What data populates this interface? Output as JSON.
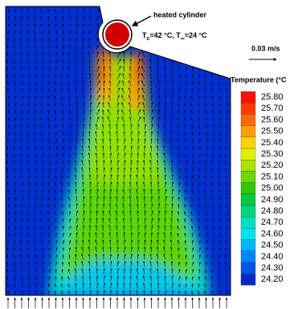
{
  "annotations": {
    "cylinder": "heated cylinder",
    "condition": [
      "T",
      "c",
      "=42 °C, T",
      "∞",
      "=24 °C"
    ],
    "scale": "0.03 m/s"
  },
  "colorbar": {
    "title": "Temperature (°C",
    "levels": [
      {
        "value": 25.8,
        "label": "25.80",
        "color": "#ff1000"
      },
      {
        "value": 25.7,
        "label": "25.70",
        "color": "#ff3c00"
      },
      {
        "value": 25.6,
        "label": "25.60",
        "color": "#ff6a00"
      },
      {
        "value": 25.5,
        "label": "25.50",
        "color": "#ffa000"
      },
      {
        "value": 25.4,
        "label": "25.40",
        "color": "#ffd400"
      },
      {
        "value": 25.3,
        "label": "25.30",
        "color": "#e0f000"
      },
      {
        "value": 25.2,
        "label": "25.20",
        "color": "#a8e400"
      },
      {
        "value": 25.1,
        "label": "25.10",
        "color": "#6cd800"
      },
      {
        "value": 25.0,
        "label": "25.00",
        "color": "#30c800"
      },
      {
        "value": 24.9,
        "label": "24.90",
        "color": "#00c840"
      },
      {
        "value": 24.8,
        "label": "24.80",
        "color": "#00d480"
      },
      {
        "value": 24.7,
        "label": "24.70",
        "color": "#00e0c0"
      },
      {
        "value": 24.6,
        "label": "24.60",
        "color": "#00e4f0"
      },
      {
        "value": 24.5,
        "label": "24.50",
        "color": "#00b4ff"
      },
      {
        "value": 24.4,
        "label": "24.40",
        "color": "#0084ff"
      },
      {
        "value": 24.3,
        "label": "24.30",
        "color": "#0054e8"
      },
      {
        "value": 24.2,
        "label": "24.20",
        "color": "#0028c8"
      }
    ]
  }
}
